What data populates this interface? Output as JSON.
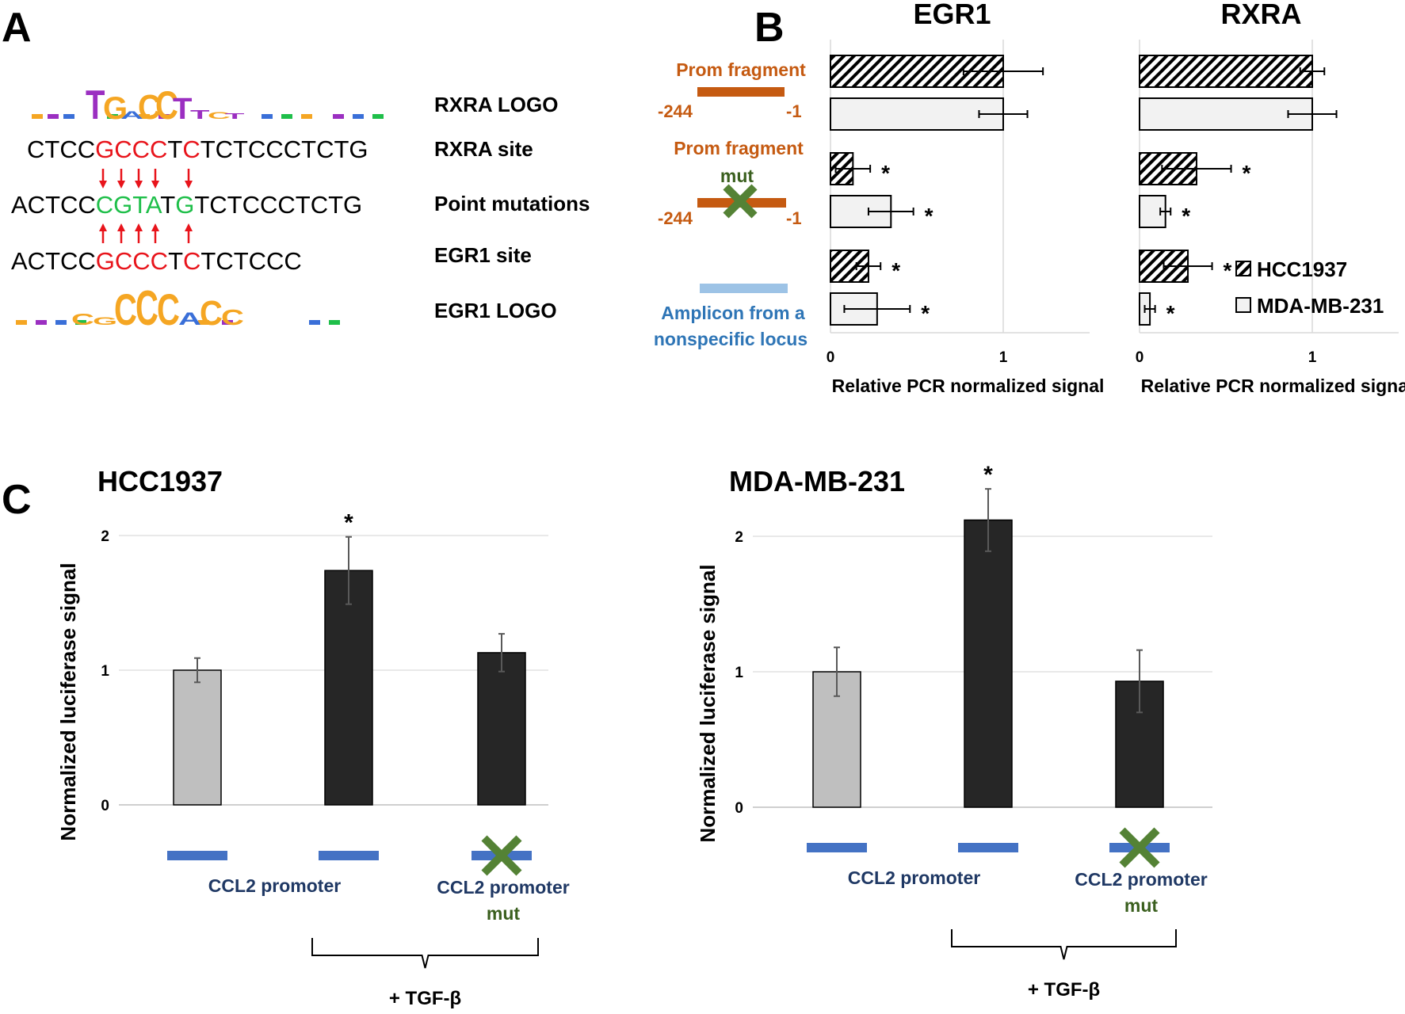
{
  "panel_letters": [
    "A",
    "B",
    "C"
  ],
  "panel_a": {
    "rows": [
      {
        "label": "RXRA LOGO"
      },
      {
        "label": "RXRA site",
        "segments": [
          [
            "CTCC",
            "#000000"
          ],
          [
            "GCCC",
            "#e8141b"
          ],
          [
            "T",
            "#000000"
          ],
          [
            "C",
            "#e8141b"
          ],
          [
            "TCTCCCTCTG",
            "#000000"
          ]
        ]
      },
      {
        "label": "Point mutations",
        "segments": [
          [
            "ACTCC",
            "#000000"
          ],
          [
            "CGTA",
            "#1fbf4a"
          ],
          [
            "T",
            "#000000"
          ],
          [
            "G",
            "#1fbf4a"
          ],
          [
            "TCTCCCTCTG",
            "#000000"
          ]
        ]
      },
      {
        "label": "EGR1 site",
        "segments": [
          [
            "ACTCC",
            "#000000"
          ],
          [
            "GCCC",
            "#e8141b"
          ],
          [
            "T",
            "#000000"
          ],
          [
            "C",
            "#e8141b"
          ],
          [
            "TCTCCC",
            "#000000"
          ]
        ]
      },
      {
        "label": "EGR1 LOGO"
      }
    ],
    "rxra_logo": {
      "letters": [
        "T",
        "G",
        "A",
        "C",
        "C",
        "T",
        "T",
        "C",
        "T"
      ],
      "colors": [
        "#9b2fc1",
        "#f5a623",
        "#3a6fd8",
        "#f5a623",
        "#f5a623",
        "#9b2fc1",
        "#9b2fc1",
        "#f5a623",
        "#9b2fc1"
      ]
    },
    "egr1_logo": {
      "letters": [
        "C",
        "G",
        "C",
        "C",
        "C",
        "A",
        "C",
        "C"
      ],
      "colors": [
        "#f5a623",
        "#f5a623",
        "#f5a623",
        "#f5a623",
        "#f5a623",
        "#3a6fd8",
        "#f5a623",
        "#f5a623"
      ]
    },
    "mutation_color": "#e8141b"
  },
  "panel_b": {
    "fragment_labels": {
      "prom_fragment": "Prom fragment",
      "prom_fragment_mut": "Prom fragment",
      "mut": "mut",
      "start": "-244",
      "end": "-1",
      "start_mut": "-244",
      "end_mut": "-1",
      "amplicon_line1": "Amplicon from a",
      "amplicon_line2": "nonspecific locus"
    },
    "colors": {
      "prom": "#c55a11",
      "mut": "#3a5f1e",
      "cross": "#548235",
      "amplicon": "#9dc3e6",
      "amplicon_text": "#2e75b6"
    },
    "legend": [
      "HCC1937",
      "MDA-MB-231"
    ]
  },
  "panel_c": {
    "labels": {
      "ccl2_promoter": "CCL2 promoter",
      "ccl2_promoter_mut": "CCL2 promoter",
      "mut": "mut",
      "treatment": "+ TGF-β"
    },
    "colors": {
      "promoter_bar": "#4472c4",
      "text": "#1f3864",
      "mut": "#3a5f1e",
      "cross": "#548235"
    }
  },
  "chart_data": [
    {
      "type": "bar",
      "orientation": "horizontal",
      "title": "EGR1",
      "xlabel": "Relative PCR normalized signal",
      "xlim": [
        0,
        1.5
      ],
      "xticks": [
        0,
        1
      ],
      "grid": true,
      "categories": [
        "Prom fragment",
        "Prom fragment mut",
        "Amplicon from a nonspecific locus"
      ],
      "series": [
        {
          "name": "HCC1937",
          "values": [
            1.0,
            0.13,
            0.22
          ],
          "errors": [
            0.23,
            0.1,
            0.07
          ],
          "significance": [
            "",
            "*",
            "*"
          ]
        },
        {
          "name": "MDA-MB-231",
          "values": [
            1.0,
            0.35,
            0.27
          ],
          "errors": [
            0.14,
            0.13,
            0.19
          ],
          "significance": [
            "",
            "*",
            "*"
          ]
        }
      ]
    },
    {
      "type": "bar",
      "orientation": "horizontal",
      "title": "RXRA",
      "xlabel": "Relative PCR normalized signal",
      "xlim": [
        0,
        1.5
      ],
      "xticks": [
        0,
        1
      ],
      "grid": true,
      "legend": "bottom-right",
      "categories": [
        "Prom fragment",
        "Prom fragment mut",
        "Amplicon from a nonspecific locus"
      ],
      "series": [
        {
          "name": "HCC1937",
          "values": [
            1.0,
            0.33,
            0.28
          ],
          "errors": [
            0.07,
            0.2,
            0.14
          ],
          "significance": [
            "",
            "*",
            "*"
          ]
        },
        {
          "name": "MDA-MB-231",
          "values": [
            1.0,
            0.15,
            0.06
          ],
          "errors": [
            0.14,
            0.03,
            0.03
          ],
          "significance": [
            "",
            "*",
            "*"
          ]
        }
      ]
    },
    {
      "type": "bar",
      "title": "HCC1937",
      "ylabel": "Normalized luciferase signal",
      "ylim": [
        0,
        2
      ],
      "yticks": [
        0,
        1,
        2
      ],
      "grid": true,
      "values": [
        1.0,
        1.74,
        1.13
      ],
      "errors": [
        0.09,
        0.25,
        0.14
      ],
      "colors": [
        "#bfbfbf",
        "#262626",
        "#262626"
      ],
      "significance": [
        "",
        "*",
        ""
      ]
    },
    {
      "type": "bar",
      "title": "MDA-MB-231",
      "ylabel": "Normalized luciferase signal",
      "ylim": [
        0,
        2
      ],
      "yticks": [
        0,
        1,
        2
      ],
      "grid": true,
      "values": [
        1.0,
        2.12,
        0.93
      ],
      "errors": [
        0.18,
        0.23,
        0.23
      ],
      "colors": [
        "#bfbfbf",
        "#262626",
        "#262626"
      ],
      "significance": [
        "",
        "*",
        ""
      ]
    }
  ]
}
